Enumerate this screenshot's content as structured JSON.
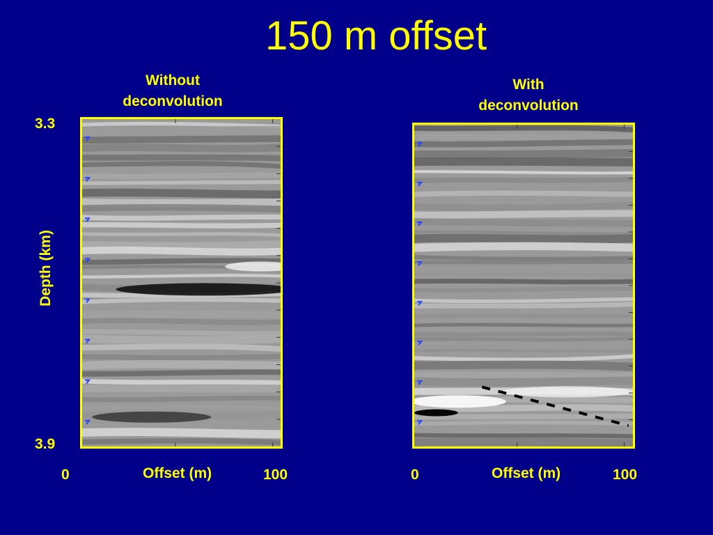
{
  "slide": {
    "title": "150 m offset"
  },
  "panels": [
    {
      "title_line1": "Without",
      "title_line2": "deconvolution",
      "x_label": "Offset (m)",
      "x_min_label": "0",
      "x_max_label": "100"
    },
    {
      "title_line1": "With",
      "title_line2": "deconvolution",
      "x_label": "Offset (m)",
      "x_min_label": "0",
      "x_max_label": "100"
    }
  ],
  "y_axis": {
    "label": "Depth (km)",
    "top_label": "3.3",
    "bottom_label": "3.9"
  },
  "colors": {
    "background": "#00008b",
    "accent": "#ffff00",
    "marker": "#2244ff"
  }
}
